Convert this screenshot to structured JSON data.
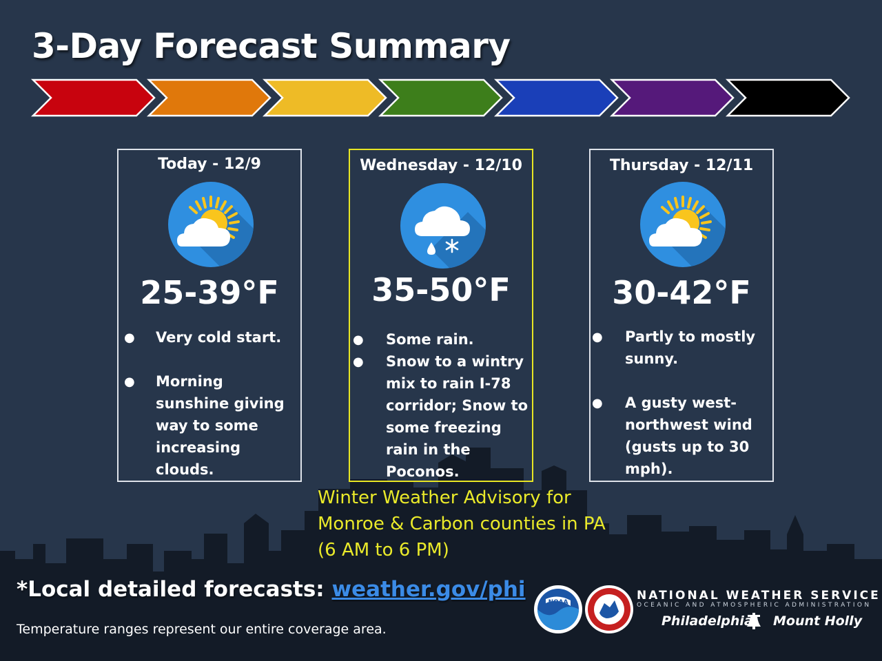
{
  "title": "3-Day Forecast Summary",
  "chevron_colors": [
    "#c8030e",
    "#e0780b",
    "#eebb26",
    "#3d7e1b",
    "#1a3fb8",
    "#55197a",
    "#000000"
  ],
  "days": [
    {
      "label": "Today - 12/9",
      "icon": "partly-sunny-icon",
      "temp": "25-39°F",
      "bullets": [
        "Very cold start.",
        "Morning sunshine giving way to some increasing clouds."
      ]
    },
    {
      "label": "Wednesday - 12/10",
      "icon": "rain-snow-icon",
      "temp": "35-50°F",
      "bullets": [
        "Some rain.",
        "Snow to a wintry mix to rain I-78 corridor; Snow to some freezing rain in the Poconos."
      ]
    },
    {
      "label": "Thursday - 12/11",
      "icon": "partly-sunny-icon",
      "temp": "30-42°F",
      "bullets": [
        "Partly to mostly sunny.",
        "A gusty west-northwest wind (gusts up to 30 mph)."
      ]
    }
  ],
  "advisory": "Winter Weather Advisory for Monroe & Carbon counties in PA (6 AM to 6 PM)",
  "footer": {
    "local_label": "*Local detailed forecasts:",
    "local_link": "weather.gov/phi",
    "note": "Temperature ranges represent our entire coverage area."
  },
  "branding": {
    "noaa_logo": "NOAA",
    "agency": "NATIONAL WEATHER SERVICE",
    "subagency": "OCEANIC AND ATMOSPHERIC ADMINISTRATION",
    "office_left": "Philadelphia",
    "office_right": "Mount Holly"
  }
}
